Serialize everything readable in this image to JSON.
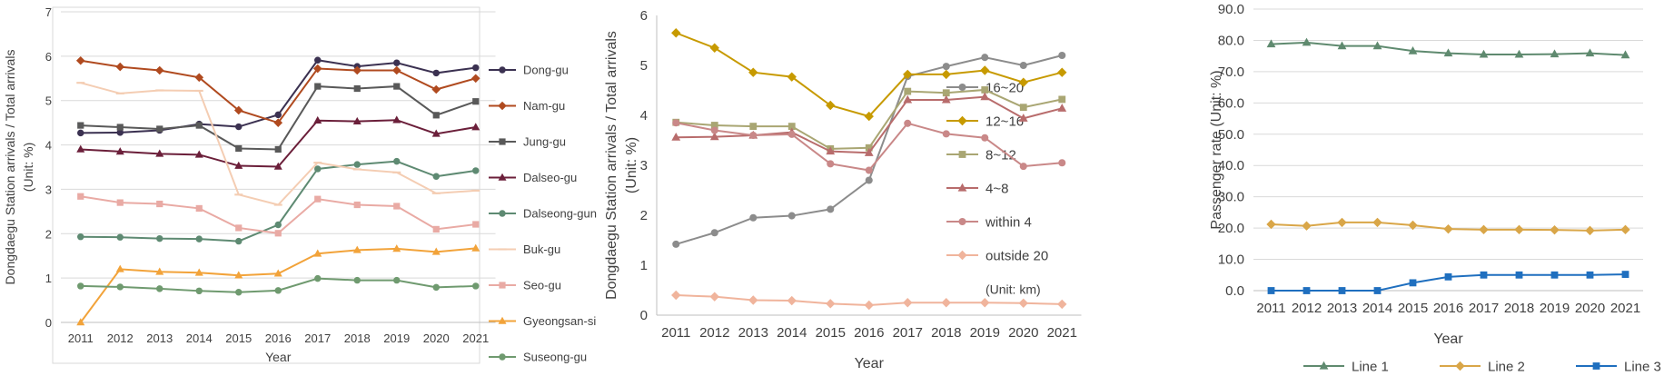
{
  "colors": {
    "grid": "#d9d9d9",
    "frame": "#d9d9d9",
    "axis": "#bfbfbf",
    "text": "#404040"
  },
  "chart_data": [
    {
      "type": "line",
      "xlabel": "Year",
      "ylabel": "Dongdaegu Station arrivals / Total arrivals",
      "ylabel_unit": "(Unit: %)",
      "x": [
        "2011",
        "2012",
        "2013",
        "2014",
        "2015",
        "2016",
        "2017",
        "2018",
        "2019",
        "2020",
        "2021"
      ],
      "ylim": [
        0,
        7
      ],
      "yticks": [
        "0",
        "1",
        "2",
        "3",
        "4",
        "5",
        "6",
        "7"
      ],
      "grid": true,
      "legend_position": "right",
      "series": [
        {
          "name": "Dong-gu",
          "color": "#3b3151",
          "marker": "circle",
          "values": [
            4.27,
            4.28,
            4.33,
            4.47,
            4.41,
            4.68,
            5.91,
            5.77,
            5.85,
            5.62,
            5.74
          ]
        },
        {
          "name": "Nam-gu",
          "color": "#b04a1f",
          "marker": "diamond",
          "values": [
            5.9,
            5.76,
            5.68,
            5.52,
            4.78,
            4.5,
            5.72,
            5.68,
            5.68,
            5.25,
            5.5
          ]
        },
        {
          "name": "Jung-gu",
          "color": "#595959",
          "marker": "square",
          "values": [
            4.44,
            4.4,
            4.36,
            4.44,
            3.92,
            3.9,
            5.32,
            5.27,
            5.32,
            4.67,
            4.98
          ]
        },
        {
          "name": "Dalseo-gu",
          "color": "#6b1f3a",
          "marker": "triangle",
          "values": [
            3.9,
            3.85,
            3.8,
            3.78,
            3.53,
            3.51,
            4.55,
            4.53,
            4.56,
            4.25,
            4.4
          ]
        },
        {
          "name": "Dalseong-gun",
          "color": "#5e8a72",
          "marker": "circle",
          "values": [
            1.93,
            1.92,
            1.89,
            1.88,
            1.83,
            2.2,
            3.46,
            3.56,
            3.63,
            3.29,
            3.42
          ]
        },
        {
          "name": "Buk-gu",
          "color": "#f4cdb3",
          "marker": "dash",
          "values": [
            5.4,
            5.16,
            5.23,
            5.22,
            2.88,
            2.65,
            3.6,
            3.45,
            3.38,
            2.91,
            2.97
          ]
        },
        {
          "name": "Seo-gu",
          "color": "#e9aaa4",
          "marker": "square",
          "values": [
            2.84,
            2.7,
            2.67,
            2.57,
            2.13,
            2.01,
            2.78,
            2.65,
            2.62,
            2.1,
            2.21
          ]
        },
        {
          "name": "Gyeongsan-si",
          "color": "#f2a33a",
          "marker": "triangle",
          "values": [
            0.0,
            1.2,
            1.14,
            1.12,
            1.06,
            1.1,
            1.55,
            1.63,
            1.66,
            1.59,
            1.67
          ]
        },
        {
          "name": "Suseong-gu",
          "color": "#6f9a6f",
          "marker": "circle",
          "values": [
            0.82,
            0.8,
            0.76,
            0.71,
            0.68,
            0.72,
            0.99,
            0.95,
            0.95,
            0.79,
            0.82
          ]
        }
      ]
    },
    {
      "type": "line",
      "xlabel": "Year",
      "ylabel": "Dongdaegu Station arrivals / Total arrivals",
      "ylabel_unit": "(Unit: %)",
      "legend_note": "(Unit: km)",
      "x": [
        "2011",
        "2012",
        "2013",
        "2014",
        "2015",
        "2016",
        "2017",
        "2018",
        "2019",
        "2020",
        "2021"
      ],
      "ylim": [
        0,
        6
      ],
      "yticks": [
        "0",
        "1",
        "2",
        "3",
        "4",
        "5",
        "6"
      ],
      "grid": false,
      "legend_position": "right",
      "series": [
        {
          "name": "16~20",
          "color": "#8c8c8c",
          "marker": "circle",
          "values": [
            1.42,
            1.65,
            1.95,
            1.99,
            2.12,
            2.7,
            4.78,
            4.98,
            5.16,
            5.0,
            5.2
          ]
        },
        {
          "name": "12~16",
          "color": "#c79a00",
          "marker": "diamond",
          "values": [
            5.65,
            5.35,
            4.86,
            4.77,
            4.2,
            3.98,
            4.82,
            4.82,
            4.9,
            4.66,
            4.86
          ]
        },
        {
          "name": "8~12",
          "color": "#a9a673",
          "marker": "square",
          "values": [
            3.86,
            3.8,
            3.78,
            3.78,
            3.33,
            3.35,
            4.48,
            4.45,
            4.51,
            4.16,
            4.32
          ]
        },
        {
          "name": "4~8",
          "color": "#b86c6c",
          "marker": "triangle",
          "values": [
            3.56,
            3.57,
            3.6,
            3.66,
            3.28,
            3.25,
            4.31,
            4.31,
            4.37,
            3.94,
            4.14
          ]
        },
        {
          "name": "within 4",
          "color": "#c98888",
          "marker": "circle",
          "values": [
            3.85,
            3.7,
            3.6,
            3.62,
            3.03,
            2.9,
            3.84,
            3.63,
            3.55,
            2.98,
            3.05
          ]
        },
        {
          "name": "outside 20",
          "color": "#f0b49c",
          "marker": "diamond",
          "values": [
            0.4,
            0.37,
            0.3,
            0.29,
            0.23,
            0.2,
            0.25,
            0.25,
            0.25,
            0.24,
            0.22
          ]
        }
      ]
    },
    {
      "type": "line",
      "xlabel": "Year",
      "ylabel": "Passenger rate (Unit: %)",
      "x": [
        "2011",
        "2012",
        "2013",
        "2014",
        "2015",
        "2016",
        "2017",
        "2018",
        "2019",
        "2020",
        "2021"
      ],
      "ylim": [
        0,
        90
      ],
      "yticks": [
        "0.0",
        "10.0",
        "20.0",
        "30.0",
        "40.0",
        "50.0",
        "60.0",
        "70.0",
        "80.0",
        "90.0"
      ],
      "grid": true,
      "legend_position": "bottom",
      "series": [
        {
          "name": "Line 1",
          "color": "#5f8a6f",
          "marker": "triangle",
          "values": [
            78.8,
            79.3,
            78.2,
            78.2,
            76.6,
            75.9,
            75.5,
            75.5,
            75.6,
            75.9,
            75.3
          ]
        },
        {
          "name": "Line 2",
          "color": "#d9a648",
          "marker": "diamond",
          "values": [
            21.2,
            20.7,
            21.8,
            21.8,
            20.9,
            19.7,
            19.5,
            19.5,
            19.4,
            19.2,
            19.5
          ]
        },
        {
          "name": "Line 3",
          "color": "#1f6fbf",
          "marker": "square",
          "values": [
            0.0,
            0.0,
            0.0,
            0.0,
            2.5,
            4.4,
            5.0,
            5.0,
            5.0,
            5.0,
            5.2
          ]
        }
      ]
    }
  ]
}
